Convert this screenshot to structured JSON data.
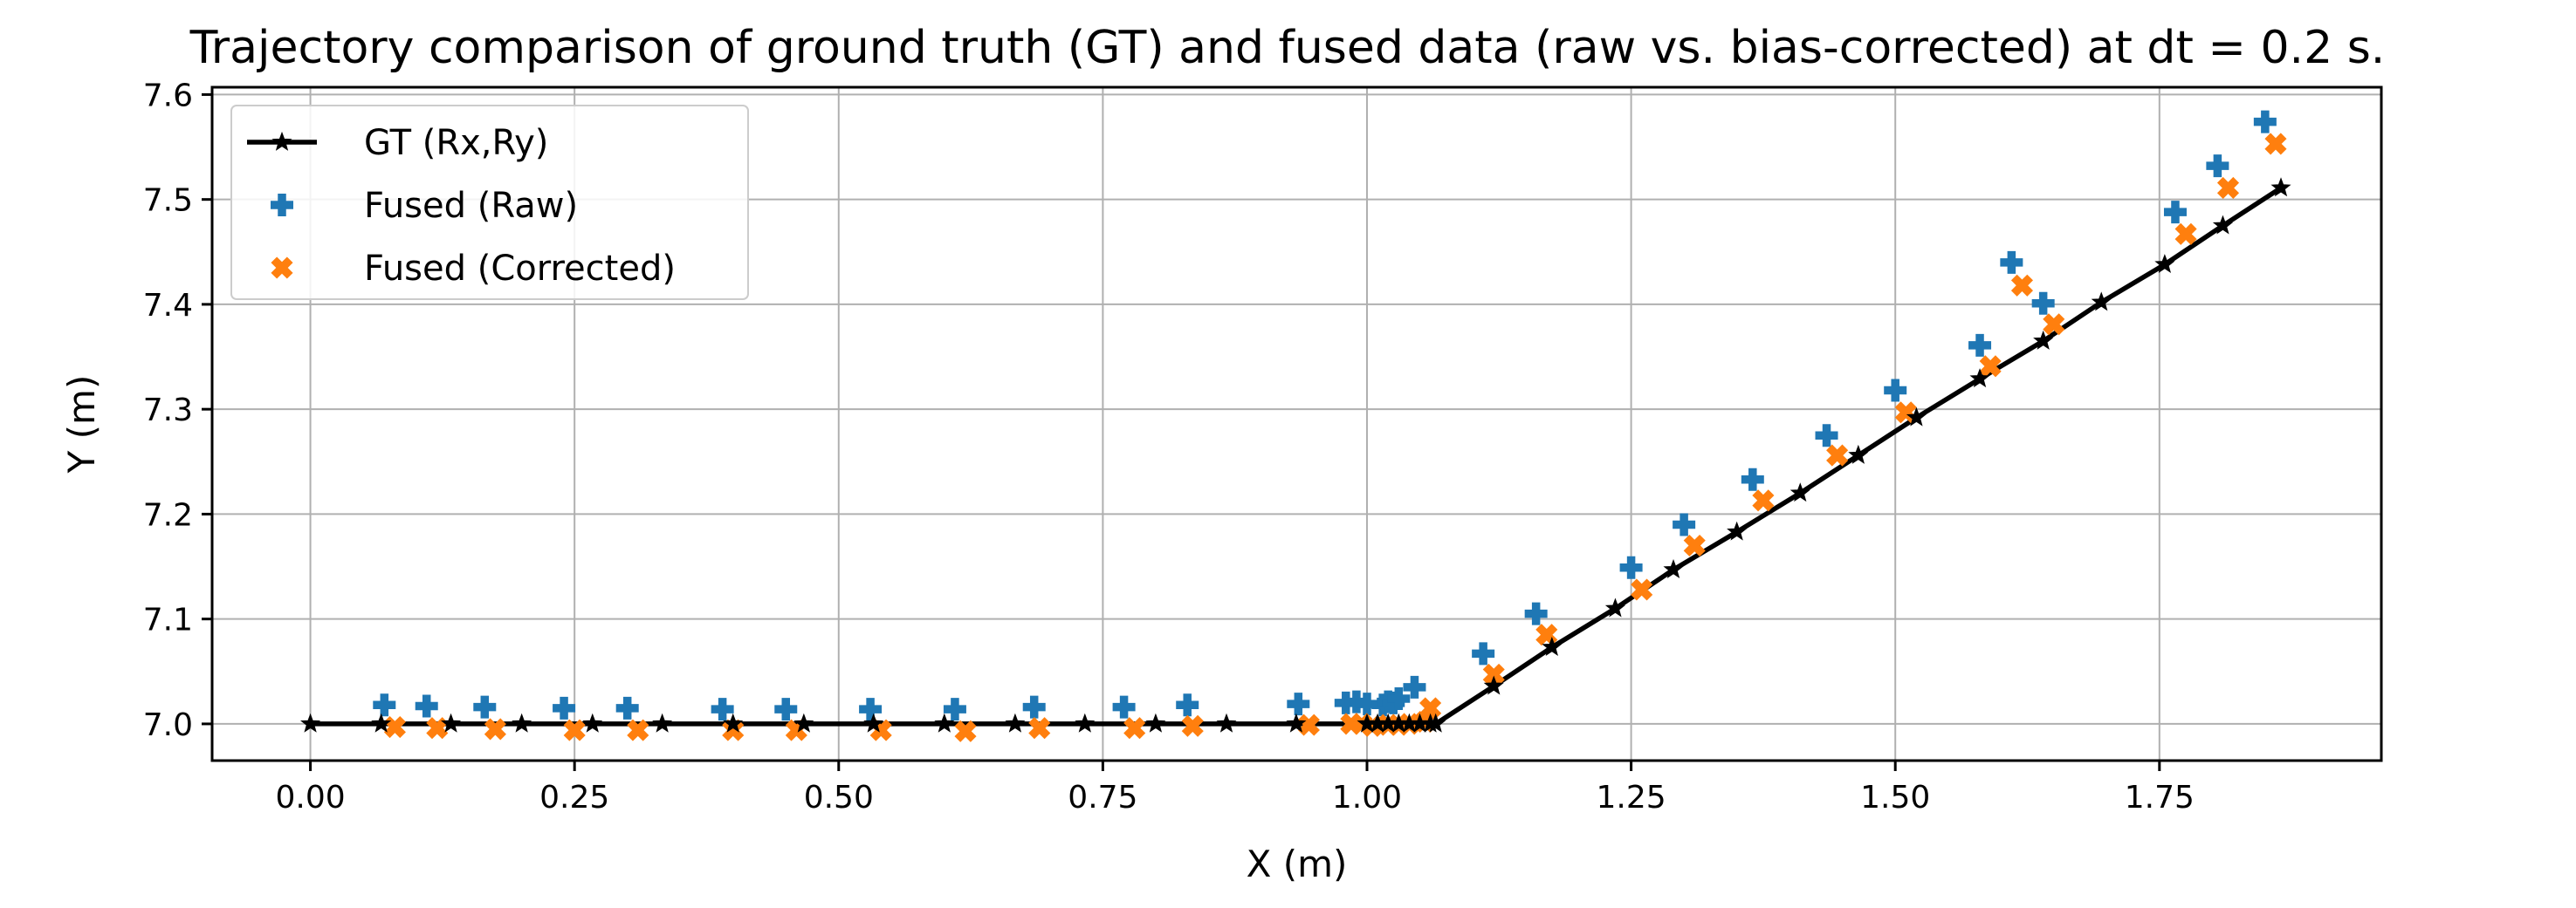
{
  "chart_data": {
    "type": "scatter",
    "title": "Trajectory comparison of ground truth (GT) and fused data (raw vs. bias-corrected) at dt = 0.2 s.",
    "xlabel": "X (m)",
    "ylabel": "Y (m)",
    "xlim": [
      -0.093,
      1.96
    ],
    "ylim": [
      6.965,
      7.607
    ],
    "xticks": [
      "0.00",
      "0.25",
      "0.50",
      "0.75",
      "1.00",
      "1.25",
      "1.50",
      "1.75"
    ],
    "yticks": [
      "7.0",
      "7.1",
      "7.2",
      "7.3",
      "7.4",
      "7.5",
      "7.6"
    ],
    "grid": true,
    "legend_position": "upper-left",
    "series": [
      {
        "name": "GT (Rx,Ry)",
        "kind": "line",
        "color": "#000000",
        "marker": "star",
        "x": [
          0.0,
          0.067,
          0.133,
          0.2,
          0.267,
          0.333,
          0.4,
          0.467,
          0.533,
          0.6,
          0.667,
          0.733,
          0.8,
          0.867,
          0.933,
          1.0,
          1.01,
          1.02,
          1.03,
          1.04,
          1.05,
          1.06,
          1.065,
          1.12,
          1.175,
          1.235,
          1.29,
          1.35,
          1.41,
          1.465,
          1.52,
          1.58,
          1.64,
          1.695,
          1.755,
          1.81,
          1.865
        ],
        "y": [
          7.0,
          7.0,
          7.0,
          7.0,
          7.0,
          7.0,
          7.0,
          7.0,
          7.0,
          7.0,
          7.0,
          7.0,
          7.0,
          7.0,
          7.0,
          7.0,
          7.0,
          7.0,
          7.0,
          7.0,
          7.0,
          7.0,
          7.0,
          7.036,
          7.073,
          7.11,
          7.147,
          7.183,
          7.22,
          7.256,
          7.292,
          7.329,
          7.365,
          7.402,
          7.438,
          7.475,
          7.511
        ]
      },
      {
        "name": "Fused (Raw)",
        "kind": "scatter",
        "color": "#1f77b4",
        "marker": "plus",
        "x": [
          0.07,
          0.11,
          0.165,
          0.24,
          0.3,
          0.39,
          0.45,
          0.53,
          0.61,
          0.685,
          0.77,
          0.83,
          0.935,
          0.98,
          0.99,
          1.0,
          1.015,
          1.02,
          1.025,
          1.03,
          1.045,
          1.11,
          1.16,
          1.25,
          1.3,
          1.365,
          1.435,
          1.5,
          1.58,
          1.61,
          1.64,
          1.765,
          1.805,
          1.85
        ],
        "y": [
          7.018,
          7.017,
          7.016,
          7.015,
          7.015,
          7.014,
          7.014,
          7.014,
          7.014,
          7.016,
          7.016,
          7.018,
          7.019,
          7.02,
          7.021,
          7.019,
          7.018,
          7.021,
          7.02,
          7.024,
          7.035,
          7.067,
          7.105,
          7.149,
          7.19,
          7.233,
          7.275,
          7.318,
          7.361,
          7.44,
          7.401,
          7.488,
          7.532,
          7.574
        ]
      },
      {
        "name": "Fused (Corrected)",
        "kind": "scatter",
        "color": "#ff7f0e",
        "marker": "x",
        "x": [
          0.08,
          0.12,
          0.175,
          0.25,
          0.31,
          0.4,
          0.46,
          0.54,
          0.62,
          0.69,
          0.78,
          0.835,
          0.945,
          0.985,
          0.995,
          1.005,
          1.02,
          1.03,
          1.04,
          1.055,
          1.06,
          1.12,
          1.17,
          1.26,
          1.31,
          1.375,
          1.445,
          1.51,
          1.59,
          1.62,
          1.65,
          1.775,
          1.815,
          1.86
        ],
        "y": [
          6.997,
          6.996,
          6.995,
          6.994,
          6.994,
          6.994,
          6.994,
          6.994,
          6.993,
          6.996,
          6.996,
          6.998,
          6.999,
          7.0,
          7.0,
          6.998,
          6.999,
          6.999,
          7.0,
          7.002,
          7.015,
          7.047,
          7.085,
          7.128,
          7.17,
          7.213,
          7.256,
          7.297,
          7.341,
          7.418,
          7.381,
          7.467,
          7.511,
          7.553
        ]
      }
    ]
  }
}
